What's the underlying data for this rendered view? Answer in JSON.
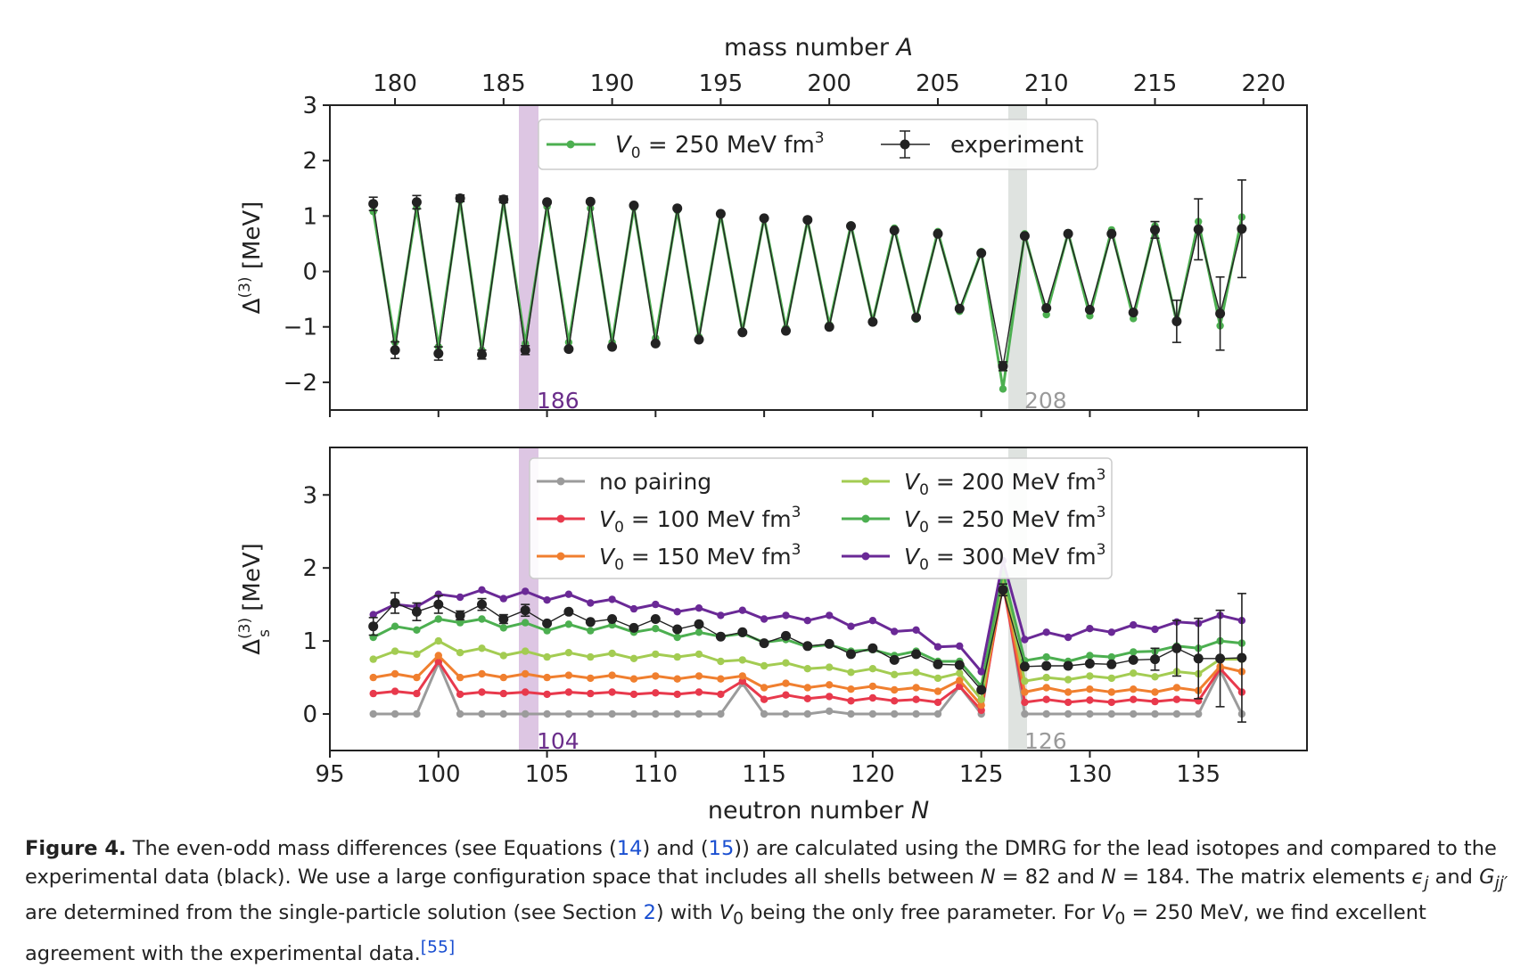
{
  "figure_caption": {
    "label": "Figure 4.",
    "text_html": "The even-odd mass differences (see Equations (<span class=\"ref\">14</span>) and (<span class=\"ref\">15</span>)) are calculated using the DMRG for the lead isotopes and compared to the experimental data (black). We use a large configuration space that includes all shells between <i>N</i> = 82 and <i>N</i> = 184. The matrix elements <i>ϵ<sub>j</sub></i> and <i>G<sub>jj′</sub></i> are determined from the single-particle solution (see Section <span class=\"ref\">2</span>) with <i>V</i><sub>0</sub> being the only free parameter. For <i>V</i><sub>0</sub> = 250 MeV, we find excellent agreement with the experimental data.<sup class=\"ref\">[55]</sup>"
  },
  "colors": {
    "no_pairing": "#9b9b9b",
    "v100": "#e8394c",
    "v150": "#f07f2f",
    "v200": "#a3cc52",
    "v250": "#4caf50",
    "v300": "#6a2996",
    "experiment": "#222222",
    "band186": "#ddc6e3",
    "band208": "#dfe3e0",
    "purple_text": "#6a2d8a",
    "gray_text": "#9a9a9a"
  },
  "chart_data": [
    {
      "type": "line",
      "panel": "top",
      "title": "",
      "xlabel_top": "mass number A",
      "ylabel": "Δ(3) [MeV]",
      "xlim": [
        95,
        140
      ],
      "ylim": [
        -2.5,
        3.0
      ],
      "x_ticks": [
        95,
        100,
        105,
        110,
        115,
        120,
        125,
        130,
        135
      ],
      "top_ticks": [
        180,
        185,
        190,
        195,
        200,
        205,
        210,
        215,
        220
      ],
      "y_ticks": [
        -2,
        -1,
        0,
        1,
        2,
        3
      ],
      "y_tick_labels": [
        "−2",
        "−1",
        "0",
        "1",
        "2",
        "3"
      ],
      "band_labels": {
        "left": "186",
        "right": "208"
      },
      "legend": {
        "v250": "V0 = 250 MeV fm3",
        "experiment": "experiment"
      },
      "x": [
        97,
        98,
        99,
        100,
        101,
        102,
        103,
        104,
        105,
        106,
        107,
        108,
        109,
        110,
        111,
        112,
        113,
        114,
        115,
        116,
        117,
        118,
        119,
        120,
        121,
        122,
        123,
        124,
        125,
        126,
        127,
        128,
        129,
        130,
        131,
        132,
        133,
        134,
        135,
        136,
        137
      ],
      "series": [
        {
          "name": "V0 = 250 MeV fm3",
          "key": "v250",
          "values": [
            1.08,
            -1.28,
            1.15,
            -1.36,
            1.28,
            -1.42,
            1.27,
            -1.3,
            1.17,
            -1.28,
            1.14,
            -1.28,
            1.15,
            -1.2,
            1.1,
            -1.18,
            1.03,
            -1.08,
            0.97,
            -1.02,
            0.92,
            -0.96,
            0.84,
            -0.9,
            0.78,
            -0.86,
            0.72,
            -0.72,
            0.36,
            -2.12,
            0.68,
            -0.78,
            0.7,
            -0.8,
            0.75,
            -0.85,
            0.82,
            -0.92,
            0.9,
            -0.98,
            0.98
          ]
        },
        {
          "name": "experiment",
          "key": "experiment",
          "values": [
            1.22,
            -1.42,
            1.25,
            -1.48,
            1.32,
            -1.5,
            1.3,
            -1.42,
            1.25,
            -1.4,
            1.26,
            -1.36,
            1.19,
            -1.3,
            1.14,
            -1.23,
            1.04,
            -1.1,
            0.96,
            -1.07,
            0.93,
            -1.0,
            0.82,
            -0.91,
            0.74,
            -0.83,
            0.68,
            -0.67,
            0.33,
            -1.71,
            0.64,
            -0.66,
            0.68,
            -0.69,
            0.68,
            -0.74,
            0.75,
            -0.9,
            0.76,
            -0.76,
            0.77
          ],
          "errors": [
            0.12,
            0.15,
            0.12,
            0.12,
            0.06,
            0.08,
            0.06,
            0.08,
            0,
            0,
            0,
            0,
            0,
            0,
            0,
            0,
            0,
            0,
            0,
            0,
            0,
            0,
            0,
            0,
            0,
            0,
            0,
            0,
            0,
            0.08,
            0,
            0,
            0,
            0,
            0,
            0,
            0.15,
            0.38,
            0.55,
            0.66,
            0.88
          ]
        }
      ]
    },
    {
      "type": "line",
      "panel": "bottom",
      "title": "",
      "xlabel": "neutron number N",
      "ylabel": "Δs(3) [MeV]",
      "xlim": [
        95,
        140
      ],
      "ylim": [
        -0.5,
        3.65
      ],
      "x_ticks": [
        95,
        100,
        105,
        110,
        115,
        120,
        125,
        130,
        135
      ],
      "y_ticks": [
        0,
        1,
        2,
        3
      ],
      "band_labels": {
        "left": "104",
        "right": "126"
      },
      "x": [
        97,
        98,
        99,
        100,
        101,
        102,
        103,
        104,
        105,
        106,
        107,
        108,
        109,
        110,
        111,
        112,
        113,
        114,
        115,
        116,
        117,
        118,
        119,
        120,
        121,
        122,
        123,
        124,
        125,
        126,
        127,
        128,
        129,
        130,
        131,
        132,
        133,
        134,
        135,
        136,
        137
      ],
      "series": [
        {
          "name": "no pairing",
          "key": "no_pairing",
          "values": [
            0,
            0,
            0,
            0.7,
            0,
            0,
            0,
            0,
            0,
            0,
            0,
            0,
            0,
            0,
            0,
            0,
            0,
            0.42,
            0,
            0,
            0,
            0.04,
            0,
            0,
            0,
            0,
            0,
            0.38,
            0,
            1.88,
            0,
            0,
            0,
            0,
            0,
            0,
            0,
            0,
            0,
            0.6,
            0
          ]
        },
        {
          "name": "V0 = 100 MeV fm3",
          "key": "v100",
          "values": [
            0.28,
            0.31,
            0.28,
            0.72,
            0.27,
            0.3,
            0.28,
            0.3,
            0.27,
            0.3,
            0.28,
            0.3,
            0.27,
            0.29,
            0.27,
            0.3,
            0.27,
            0.45,
            0.2,
            0.26,
            0.21,
            0.24,
            0.18,
            0.22,
            0.18,
            0.2,
            0.16,
            0.38,
            0.05,
            1.78,
            0.16,
            0.2,
            0.16,
            0.19,
            0.16,
            0.2,
            0.17,
            0.2,
            0.18,
            0.62,
            0.3
          ]
        },
        {
          "name": "V0 = 150 MeV fm3",
          "key": "v150",
          "values": [
            0.5,
            0.55,
            0.5,
            0.8,
            0.5,
            0.55,
            0.5,
            0.55,
            0.5,
            0.53,
            0.49,
            0.53,
            0.48,
            0.52,
            0.48,
            0.52,
            0.48,
            0.52,
            0.36,
            0.42,
            0.36,
            0.4,
            0.34,
            0.38,
            0.33,
            0.36,
            0.31,
            0.46,
            0.12,
            1.82,
            0.3,
            0.36,
            0.3,
            0.34,
            0.3,
            0.34,
            0.3,
            0.36,
            0.32,
            0.65,
            0.58
          ]
        },
        {
          "name": "V0 = 200 MeV fm3",
          "key": "v200",
          "values": [
            0.75,
            0.86,
            0.82,
            1.0,
            0.84,
            0.9,
            0.8,
            0.86,
            0.78,
            0.84,
            0.78,
            0.83,
            0.76,
            0.82,
            0.78,
            0.82,
            0.72,
            0.74,
            0.66,
            0.7,
            0.62,
            0.64,
            0.57,
            0.62,
            0.54,
            0.57,
            0.49,
            0.56,
            0.2,
            1.9,
            0.45,
            0.5,
            0.47,
            0.52,
            0.49,
            0.56,
            0.51,
            0.58,
            0.55,
            0.75,
            0.75
          ]
        },
        {
          "name": "V0 = 250 MeV fm3",
          "key": "v250",
          "values": [
            1.05,
            1.2,
            1.15,
            1.3,
            1.25,
            1.3,
            1.18,
            1.25,
            1.14,
            1.23,
            1.14,
            1.22,
            1.12,
            1.17,
            1.05,
            1.12,
            1.06,
            1.1,
            0.98,
            1.02,
            0.92,
            0.95,
            0.86,
            0.88,
            0.8,
            0.86,
            0.72,
            0.72,
            0.38,
            1.95,
            0.73,
            0.78,
            0.72,
            0.8,
            0.78,
            0.85,
            0.86,
            0.93,
            0.9,
            1.0,
            0.97
          ]
        },
        {
          "name": "V0 = 300 MeV fm3",
          "key": "v300",
          "values": [
            1.36,
            1.5,
            1.47,
            1.64,
            1.6,
            1.7,
            1.58,
            1.68,
            1.56,
            1.64,
            1.52,
            1.57,
            1.44,
            1.5,
            1.4,
            1.45,
            1.35,
            1.42,
            1.3,
            1.35,
            1.28,
            1.35,
            1.2,
            1.28,
            1.13,
            1.15,
            0.92,
            0.93,
            0.58,
            2.1,
            1.02,
            1.12,
            1.05,
            1.17,
            1.12,
            1.22,
            1.16,
            1.26,
            1.24,
            1.35,
            1.28
          ]
        },
        {
          "name": "experiment",
          "key": "experiment",
          "values": [
            1.2,
            1.52,
            1.4,
            1.5,
            1.35,
            1.5,
            1.3,
            1.42,
            1.24,
            1.4,
            1.26,
            1.3,
            1.18,
            1.3,
            1.16,
            1.23,
            1.06,
            1.12,
            0.97,
            1.07,
            0.93,
            0.96,
            0.82,
            0.9,
            0.74,
            0.82,
            0.68,
            0.67,
            0.33,
            1.7,
            0.65,
            0.66,
            0.66,
            0.69,
            0.68,
            0.74,
            0.75,
            0.9,
            0.76,
            0.76,
            0.77
          ],
          "errors": [
            0.12,
            0.14,
            0.12,
            0.12,
            0.06,
            0.08,
            0.06,
            0.08,
            0,
            0,
            0,
            0,
            0,
            0,
            0,
            0,
            0,
            0,
            0,
            0,
            0,
            0,
            0,
            0,
            0,
            0,
            0,
            0,
            0,
            0.08,
            0,
            0,
            0,
            0,
            0,
            0,
            0.15,
            0.38,
            0.55,
            0.66,
            0.88
          ]
        }
      ],
      "legend": [
        {
          "key": "no_pairing",
          "label": "no pairing"
        },
        {
          "key": "v100",
          "label": "V0 = 100 MeV fm3"
        },
        {
          "key": "v150",
          "label": "V0 = 150 MeV fm3"
        },
        {
          "key": "v200",
          "label": "V0 = 200 MeV fm3"
        },
        {
          "key": "v250",
          "label": "V0 = 250 MeV fm3"
        },
        {
          "key": "v300",
          "label": "V0 = 300 MeV fm3"
        }
      ]
    }
  ]
}
